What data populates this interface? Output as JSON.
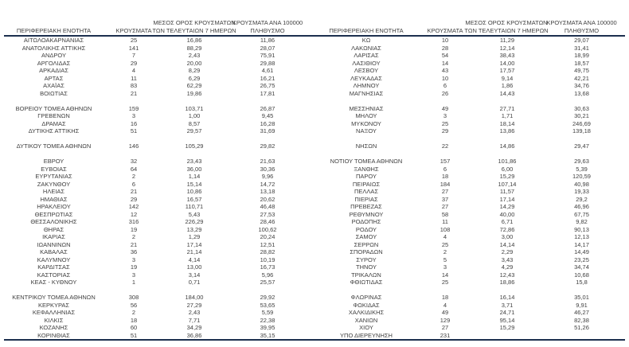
{
  "colors": {
    "text": "#3f3f3f",
    "rule": "#1c2f4e",
    "background": "#ffffff"
  },
  "columns": {
    "region": "ΠΕΡΙΦΕΡΕΙΑΚΗ ΕΝΟΤΗΤΑ",
    "cases": "ΚΡΟΥΣΜΑΤΑ",
    "avg7": "ΜΕΣΟΣ ΟΡΟΣ ΚΡΟΥΣΜΑΤΩΝ ΤΩΝ ΤΕΛΕΥΤΑΙΩΝ 7 ΗΜΕΡΩΝ",
    "per100k": "ΚΡΟΥΣΜΑΤΑ ΑΝΑ 100000 ΠΛΗΘΥΣΜΟ"
  },
  "tables": [
    {
      "rows": [
        [
          "ΑΙΤΩΛΟΑΚΑΡΝΑΝΙΑΣ",
          "25",
          "16,86",
          "11,86"
        ],
        [
          "ΑΝΑΤΟΛΙΚΗΣ ΑΤΤΙΚΗΣ",
          "141",
          "88,29",
          "28,07"
        ],
        [
          "ΑΝΔΡΟΥ",
          "7",
          "2,43",
          "75,91"
        ],
        [
          "ΑΡΓΟΛΙΔΑΣ",
          "29",
          "20,00",
          "29,88"
        ],
        [
          "ΑΡΚΑΔΙΑΣ",
          "4",
          "8,29",
          "4,61"
        ],
        [
          "ΑΡΤΑΣ",
          "11",
          "6,29",
          "16,21"
        ],
        [
          "ΑΧΑΪΑΣ",
          "83",
          "62,29",
          "26,75"
        ],
        [
          "ΒΟΙΩΤΙΑΣ",
          "21",
          "19,86",
          "17,81"
        ],
        null,
        [
          "ΒΟΡΕΙΟΥ ΤΟΜΕΑ ΑΘΗΝΩΝ",
          "159",
          "103,71",
          "26,87"
        ],
        [
          "ΓΡΕΒΕΝΩΝ",
          "3",
          "1,00",
          "9,45"
        ],
        [
          "ΔΡΑΜΑΣ",
          "16",
          "8,57",
          "16,28"
        ],
        [
          "ΔΥΤΙΚΗΣ ΑΤΤΙΚΗΣ",
          "51",
          "29,57",
          "31,69"
        ],
        null,
        [
          "ΔΥΤΙΚΟΥ ΤΟΜΕΑ ΑΘΗΝΩΝ",
          "146",
          "105,29",
          "29,82"
        ],
        null,
        [
          "ΕΒΡΟΥ",
          "32",
          "23,43",
          "21,63"
        ],
        [
          "ΕΥΒΟΙΑΣ",
          "64",
          "36,00",
          "30,36"
        ],
        [
          "ΕΥΡΥΤΑΝΙΑΣ",
          "2",
          "1,14",
          "9,96"
        ],
        [
          "ΖΑΚΥΝΘΟΥ",
          "6",
          "15,14",
          "14,72"
        ],
        [
          "ΗΛΕΙΑΣ",
          "21",
          "10,86",
          "13,18"
        ],
        [
          "ΗΜΑΘΙΑΣ",
          "29",
          "16,57",
          "20,62"
        ],
        [
          "ΗΡΑΚΛΕΙΟΥ",
          "142",
          "110,71",
          "46,48"
        ],
        [
          "ΘΕΣΠΡΩΤΙΑΣ",
          "12",
          "5,43",
          "27,53"
        ],
        [
          "ΘΕΣΣΑΛΟΝΙΚΗΣ",
          "316",
          "226,29",
          "28,46"
        ],
        [
          "ΘΗΡΑΣ",
          "19",
          "13,29",
          "100,62"
        ],
        [
          "ΙΚΑΡΙΑΣ",
          "2",
          "1,29",
          "20,24"
        ],
        [
          "ΙΩΑΝΝΙΝΩΝ",
          "21",
          "17,14",
          "12,51"
        ],
        [
          "ΚΑΒΑΛΑΣ",
          "36",
          "21,14",
          "28,82"
        ],
        [
          "ΚΑΛΥΜΝΟΥ",
          "3",
          "4,14",
          "10,19"
        ],
        [
          "ΚΑΡΔΙΤΣΑΣ",
          "19",
          "13,00",
          "16,73"
        ],
        [
          "ΚΑΣΤΟΡΙΑΣ",
          "3",
          "3,14",
          "5,96"
        ],
        [
          "ΚΕΑΣ - ΚΥΘΝΟΥ",
          "1",
          "0,71",
          "25,57"
        ],
        null,
        [
          "ΚΕΝΤΡΙΚΟΥ ΤΟΜΕΑ ΑΘΗΝΩΝ",
          "308",
          "184,00",
          "29,92"
        ],
        [
          "ΚΕΡΚΥΡΑΣ",
          "56",
          "27,29",
          "53,65"
        ],
        [
          "ΚΕΦΑΛΛΗΝΙΑΣ",
          "2",
          "2,43",
          "5,59"
        ],
        [
          "ΚΙΛΚΙΣ",
          "18",
          "7,71",
          "22,38"
        ],
        [
          "ΚΟΖΑΝΗΣ",
          "60",
          "34,29",
          "39,95"
        ],
        [
          "ΚΟΡΙΝΘΙΑΣ",
          "51",
          "36,86",
          "35,15"
        ]
      ]
    },
    {
      "rows": [
        [
          "ΚΩ",
          "10",
          "11,29",
          "29,07"
        ],
        [
          "ΛΑΚΩΝΙΑΣ",
          "28",
          "12,14",
          "31,41"
        ],
        [
          "ΛΑΡΙΣΑΣ",
          "54",
          "38,43",
          "18,99"
        ],
        [
          "ΛΑΣΙΘΙΟΥ",
          "14",
          "14,00",
          "18,57"
        ],
        [
          "ΛΕΣΒΟΥ",
          "43",
          "17,57",
          "49,75"
        ],
        [
          "ΛΕΥΚΑΔΑΣ",
          "10",
          "9,14",
          "42,21"
        ],
        [
          "ΛΗΜΝΟΥ",
          "6",
          "1,86",
          "34,76"
        ],
        [
          "ΜΑΓΝΗΣΙΑΣ",
          "26",
          "14,43",
          "13,68"
        ],
        null,
        [
          "ΜΕΣΣΗΝΙΑΣ",
          "49",
          "27,71",
          "30,63"
        ],
        [
          "ΜΗΛΟΥ",
          "3",
          "1,71",
          "30,21"
        ],
        [
          "ΜΥΚΟΝΟΥ",
          "25",
          "18,14",
          "246,69"
        ],
        [
          "ΝΑΞΟΥ",
          "29",
          "13,86",
          "139,18"
        ],
        null,
        [
          "ΝΗΣΩΝ",
          "22",
          "14,86",
          "29,47"
        ],
        null,
        [
          "ΝΟΤΙΟΥ ΤΟΜΕΑ ΑΘΗΝΩΝ",
          "157",
          "101,86",
          "29,63"
        ],
        [
          "ΞΑΝΘΗΣ",
          "6",
          "6,00",
          "5,39"
        ],
        [
          "ΠΑΡΟΥ",
          "18",
          "15,29",
          "120,59"
        ],
        [
          "ΠΕΙΡΑΙΩΣ",
          "184",
          "107,14",
          "40,98"
        ],
        [
          "ΠΕΛΛΑΣ",
          "27",
          "11,57",
          "19,33"
        ],
        [
          "ΠΙΕΡΙΑΣ",
          "37",
          "17,14",
          "29,2"
        ],
        [
          "ΠΡΕΒΕΖΑΣ",
          "27",
          "14,29",
          "46,96"
        ],
        [
          "ΡΕΘΥΜΝΟΥ",
          "58",
          "40,00",
          "67,75"
        ],
        [
          "ΡΟΔΟΠΗΣ",
          "11",
          "6,71",
          "9,82"
        ],
        [
          "ΡΟΔΟΥ",
          "108",
          "72,86",
          "90,13"
        ],
        [
          "ΣΑΜΟΥ",
          "4",
          "3,00",
          "12,13"
        ],
        [
          "ΣΕΡΡΩΝ",
          "25",
          "14,14",
          "14,17"
        ],
        [
          "ΣΠΟΡΑΔΩΝ",
          "2",
          "2,29",
          "14,49"
        ],
        [
          "ΣΥΡΟΥ",
          "5",
          "3,43",
          "23,25"
        ],
        [
          "ΤΗΝΟΥ",
          "3",
          "4,29",
          "34,74"
        ],
        [
          "ΤΡΙΚΑΛΩΝ",
          "14",
          "12,43",
          "10,68"
        ],
        [
          "ΦΘΙΩΤΙΔΑΣ",
          "25",
          "18,86",
          "15,8"
        ],
        null,
        [
          "ΦΛΩΡΙΝΑΣ",
          "18",
          "16,14",
          "35,01"
        ],
        [
          "ΦΩΚΙΔΑΣ",
          "4",
          "3,71",
          "9,91"
        ],
        [
          "ΧΑΛΚΙΔΙΚΗΣ",
          "49",
          "24,71",
          "46,27"
        ],
        [
          "ΧΑΝΙΩΝ",
          "129",
          "95,14",
          "82,38"
        ],
        [
          "ΧΙΟΥ",
          "27",
          "15,29",
          "51,26"
        ],
        [
          "ΥΠΟ ΔΙΕΡΕΥΝΗΣΗ",
          "231",
          "",
          ""
        ]
      ]
    }
  ]
}
